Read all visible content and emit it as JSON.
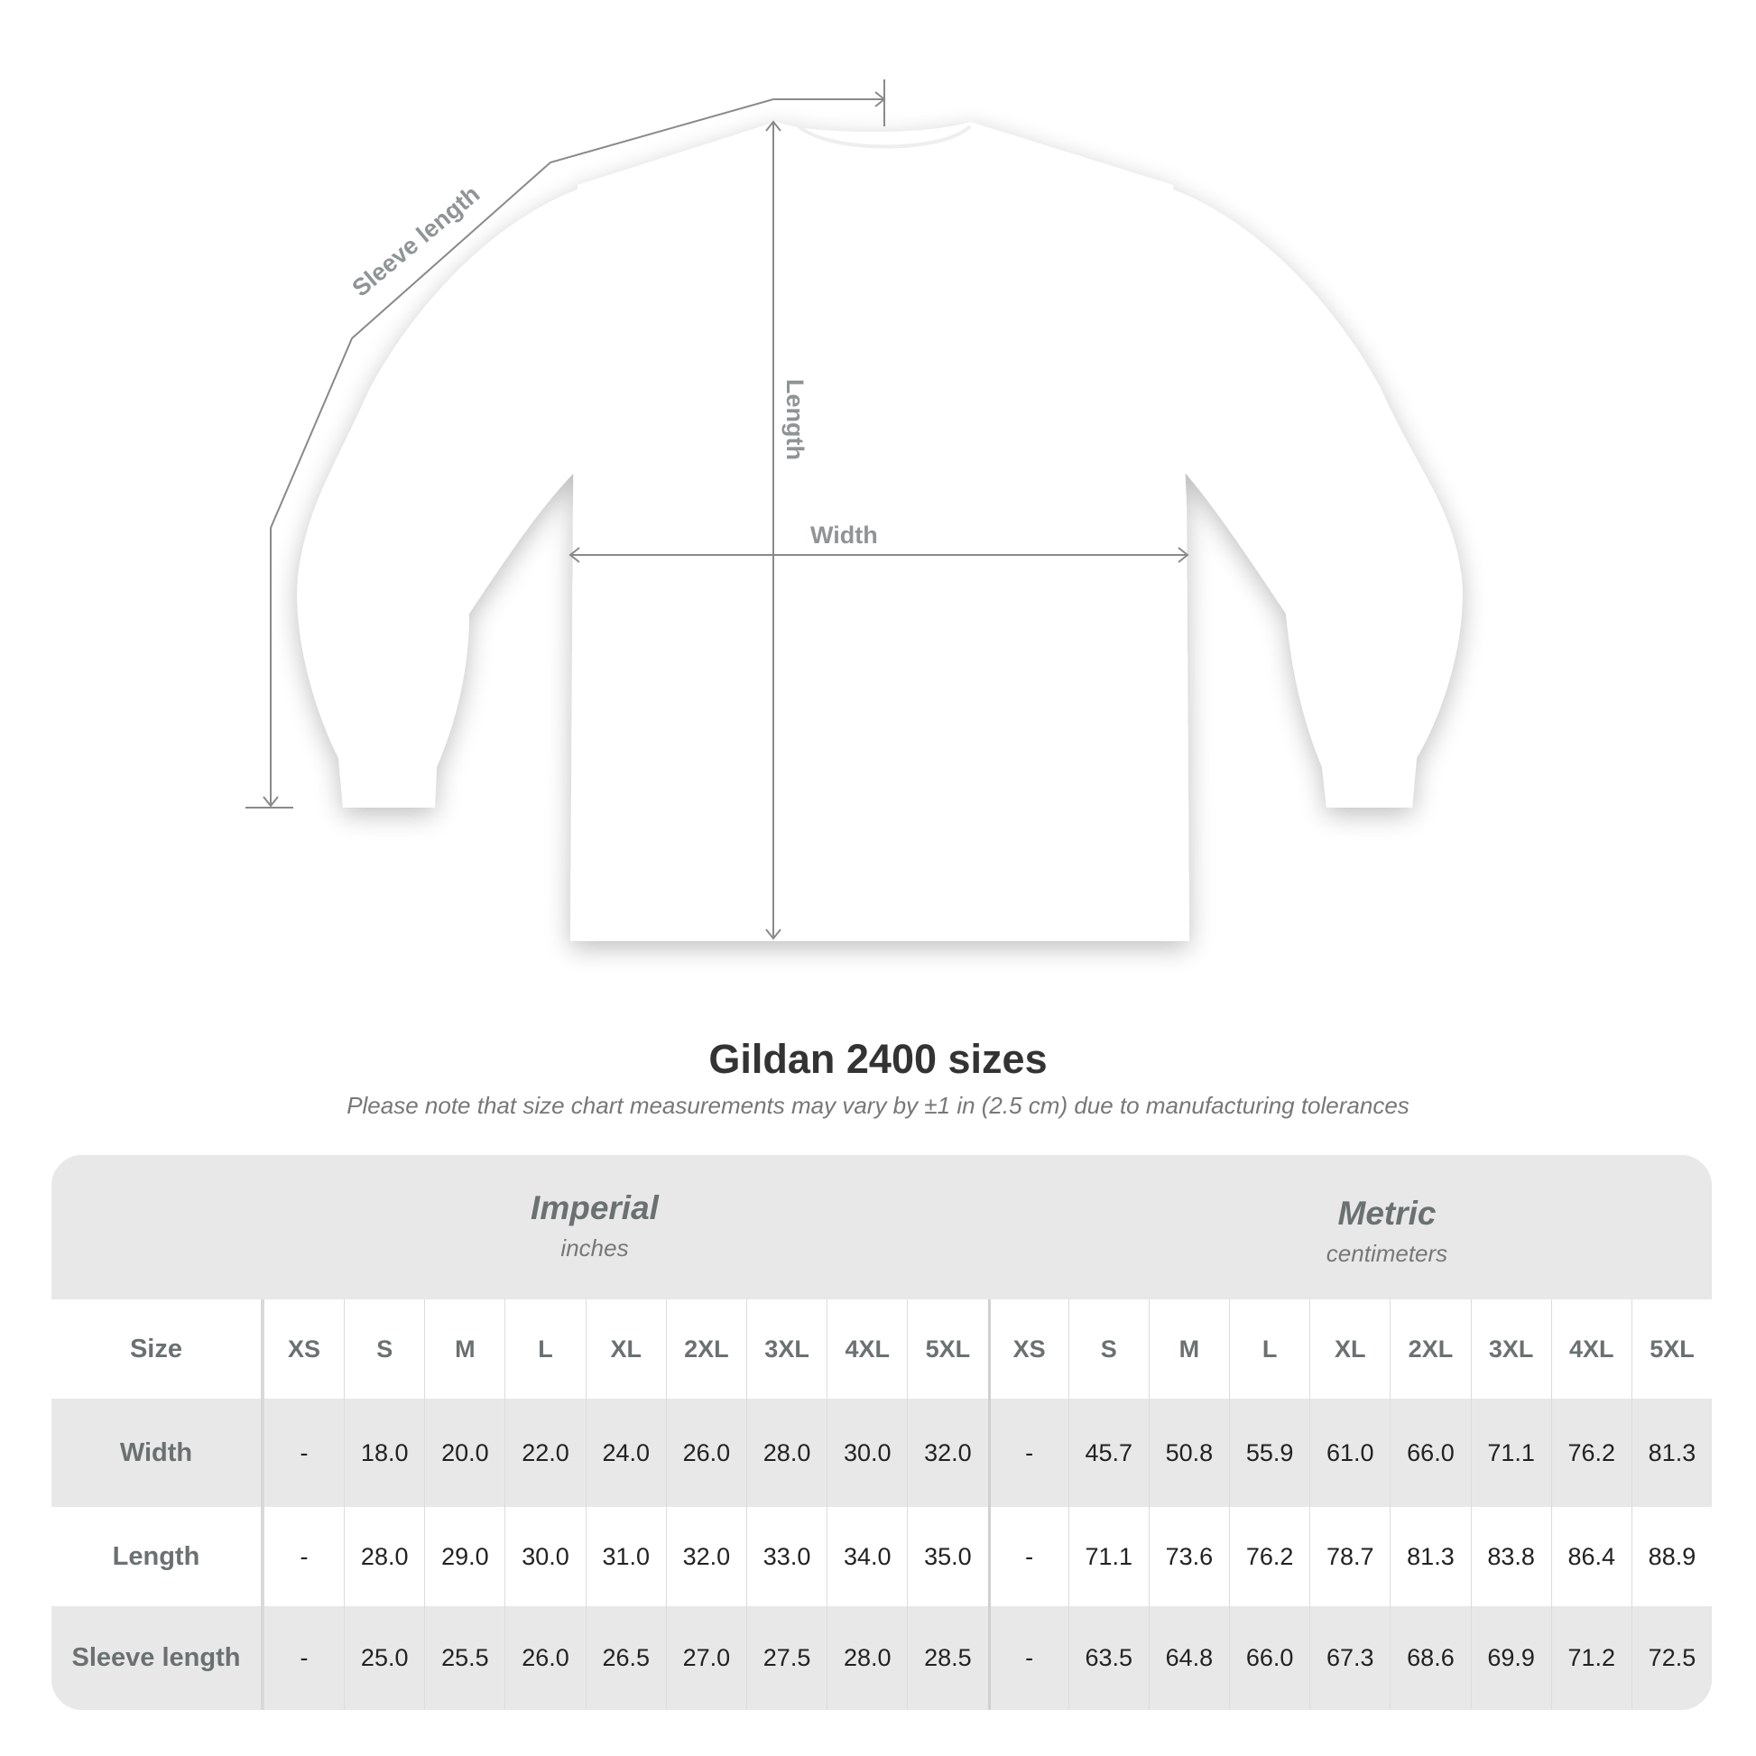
{
  "diagram": {
    "labels": {
      "sleeve": "Sleeve length",
      "length": "Length",
      "width": "Width"
    },
    "colors": {
      "shirt": "#ffffff",
      "measure_line": "#8a8a8a",
      "label": "#8f9494"
    }
  },
  "title": "Gildan 2400 sizes",
  "subtitle": "Please note that size chart measurements may vary by ±1 in (2.5 cm) due to manufacturing tolerances",
  "table": {
    "imperial": {
      "name": "Imperial",
      "unit": "inches"
    },
    "metric": {
      "name": "Metric",
      "unit": "centimeters"
    },
    "size_label": "Size",
    "imperial_sizes": [
      "XS",
      "S",
      "M",
      "L",
      "XL",
      "2XL",
      "3XL",
      "4XL",
      "5XL"
    ],
    "metric_sizes": [
      "XS",
      "S",
      "M",
      "L",
      "XL",
      "2XL",
      "3XL",
      "4XL",
      "5XL"
    ],
    "rows": [
      {
        "label": "Width",
        "imperial": [
          "-",
          "18.0",
          "20.0",
          "22.0",
          "24.0",
          "26.0",
          "28.0",
          "30.0",
          "32.0"
        ],
        "metric": [
          "-",
          "45.7",
          "50.8",
          "55.9",
          "61.0",
          "66.0",
          "71.1",
          "76.2",
          "81.3"
        ]
      },
      {
        "label": "Length",
        "imperial": [
          "-",
          "28.0",
          "29.0",
          "30.0",
          "31.0",
          "32.0",
          "33.0",
          "34.0",
          "35.0"
        ],
        "metric": [
          "-",
          "71.1",
          "73.6",
          "76.2",
          "78.7",
          "81.3",
          "83.8",
          "86.4",
          "88.9"
        ]
      },
      {
        "label": "Sleeve length",
        "imperial": [
          "-",
          "25.0",
          "25.5",
          "26.0",
          "26.5",
          "27.0",
          "27.5",
          "28.0",
          "28.5"
        ],
        "metric": [
          "-",
          "63.5",
          "64.8",
          "66.0",
          "67.3",
          "68.6",
          "69.9",
          "71.2",
          "72.5"
        ]
      }
    ]
  }
}
